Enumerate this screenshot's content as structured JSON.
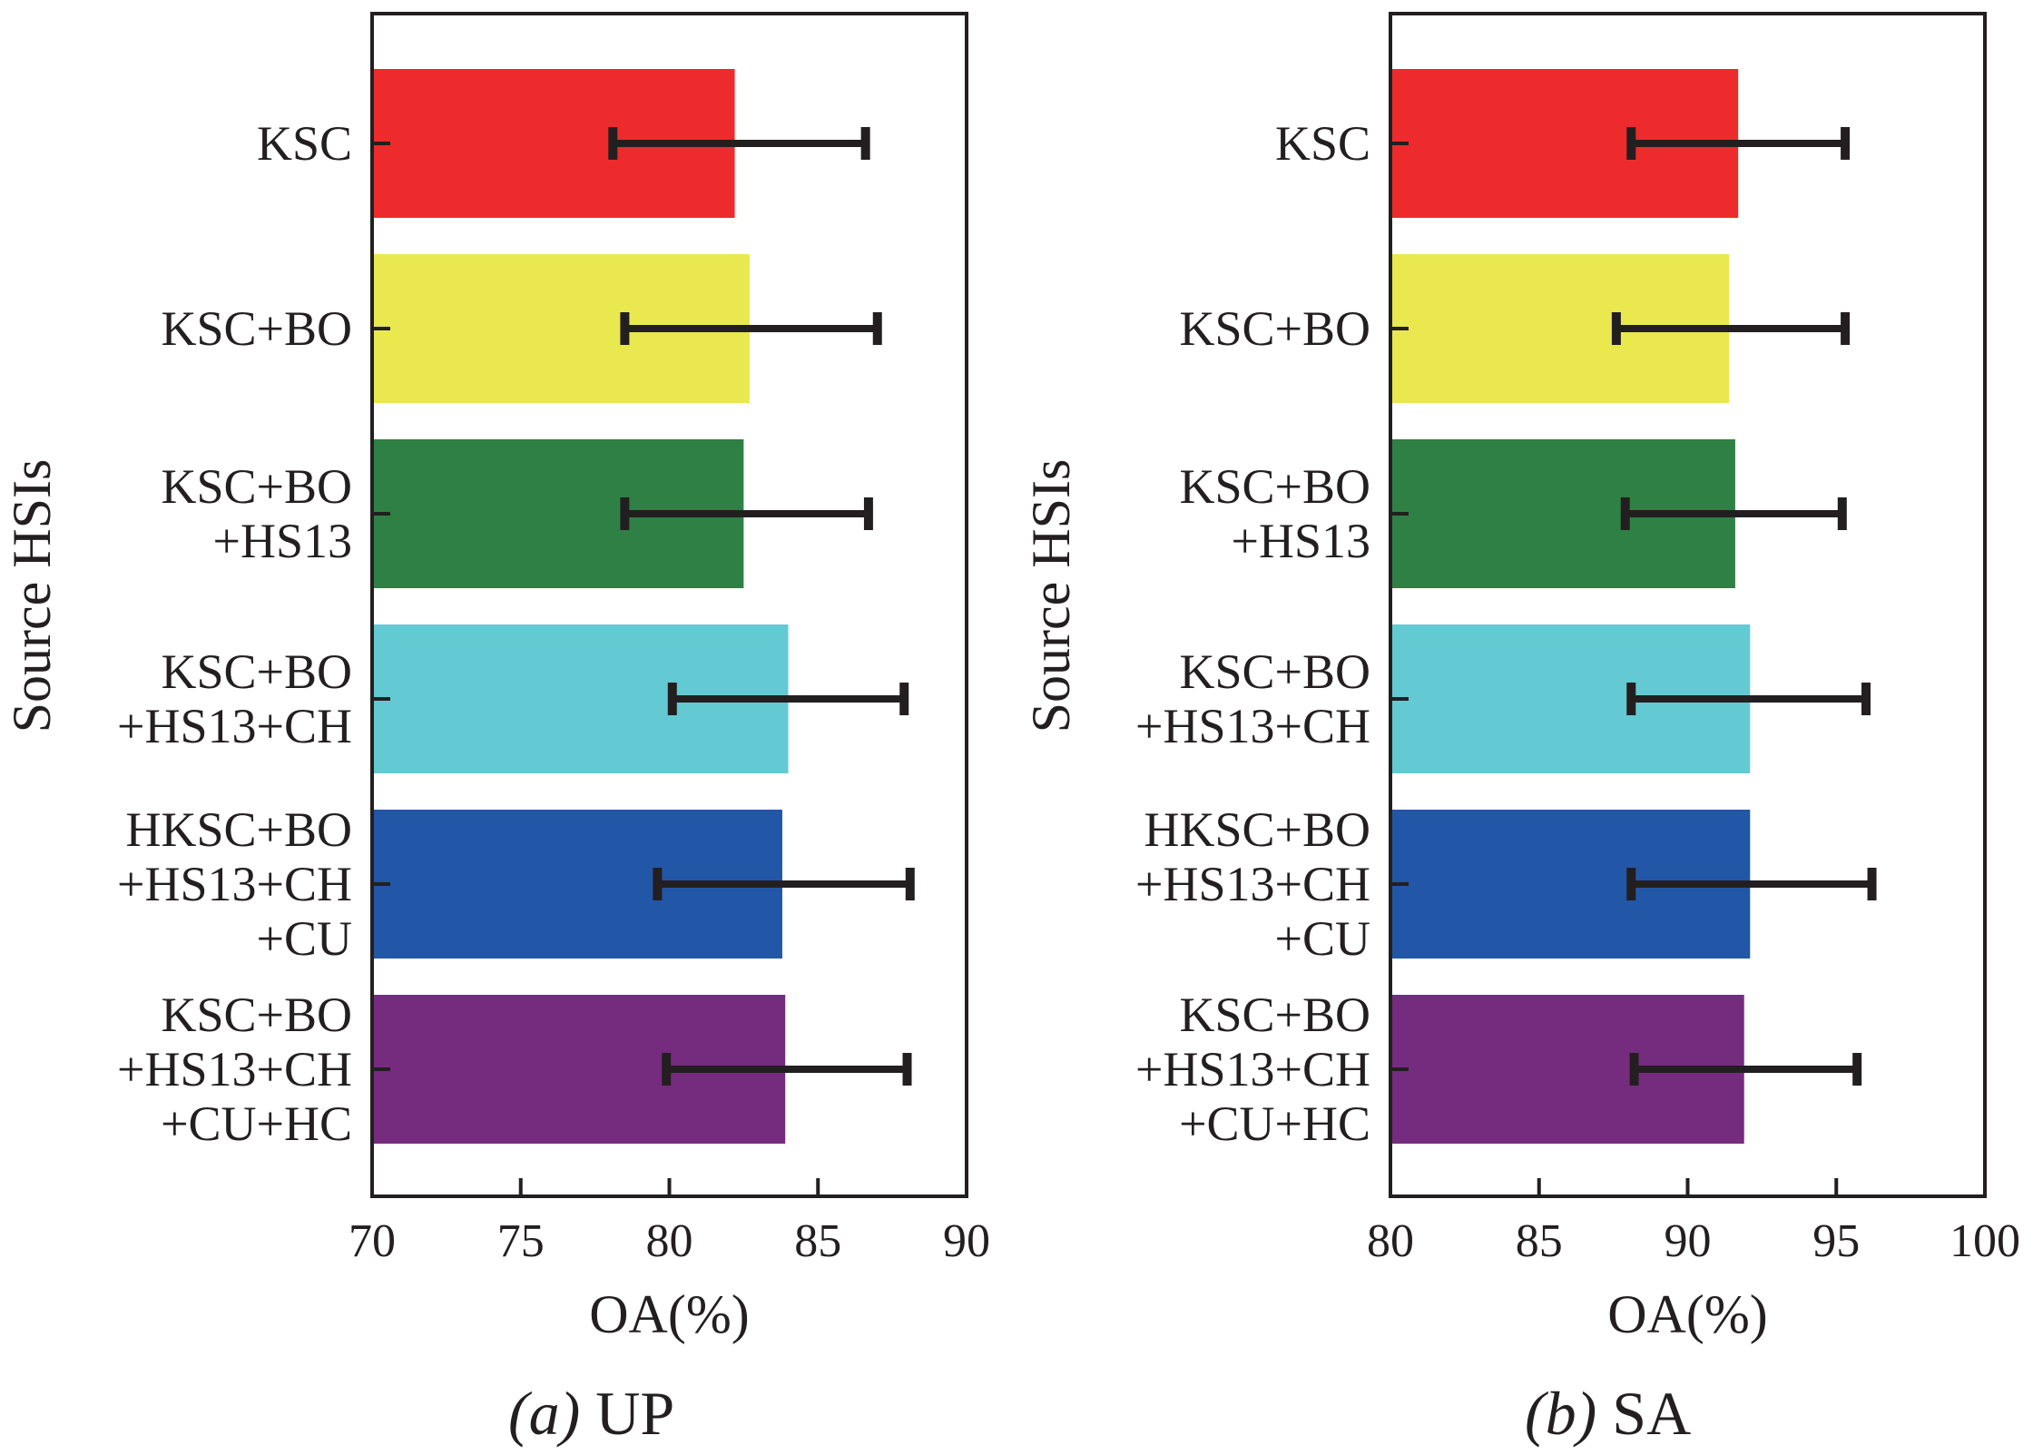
{
  "chart_data": [
    {
      "type": "bar",
      "orientation": "horizontal",
      "caption_prefix": "(a)",
      "caption_name": " UP",
      "xlabel": "OA(%)",
      "ylabel": "Source HSIs",
      "xlim": [
        70,
        90
      ],
      "xticks": [
        70,
        75,
        80,
        85,
        90
      ],
      "categories": [
        [
          "KSC"
        ],
        [
          "KSC+BO"
        ],
        [
          "KSC+BO",
          "+HS13"
        ],
        [
          "KSC+BO",
          "+HS13+CH"
        ],
        [
          "HKSC+BO",
          "+HS13+CH",
          "+CU"
        ],
        [
          "KSC+BO",
          "+HS13+CH",
          "+CU+HC"
        ]
      ],
      "values": [
        82.2,
        82.7,
        82.5,
        84.0,
        83.8,
        83.9
      ],
      "error_low": [
        78.1,
        78.5,
        78.5,
        80.1,
        79.6,
        79.9
      ],
      "error_high": [
        86.6,
        87.0,
        86.7,
        87.9,
        88.1,
        88.0
      ],
      "colors": [
        "#ee2b2c",
        "#e9e84f",
        "#2f8045",
        "#63c9d3",
        "#2256a6",
        "#762c7e"
      ]
    },
    {
      "type": "bar",
      "orientation": "horizontal",
      "caption_prefix": "(b)",
      "caption_name": " SA",
      "xlabel": "OA(%)",
      "ylabel": "Source HSIs",
      "xlim": [
        80,
        100
      ],
      "xticks": [
        80,
        85,
        90,
        95,
        100
      ],
      "categories": [
        [
          "KSC"
        ],
        [
          "KSC+BO"
        ],
        [
          "KSC+BO",
          "+HS13"
        ],
        [
          "KSC+BO",
          "+HS13+CH"
        ],
        [
          "HKSC+BO",
          "+HS13+CH",
          "+CU"
        ],
        [
          "KSC+BO",
          "+HS13+CH",
          "+CU+HC"
        ]
      ],
      "values": [
        91.7,
        91.4,
        91.6,
        92.1,
        92.1,
        91.9
      ],
      "error_low": [
        88.1,
        87.6,
        87.9,
        88.1,
        88.1,
        88.2
      ],
      "error_high": [
        95.3,
        95.3,
        95.2,
        96.0,
        96.2,
        95.7
      ],
      "colors": [
        "#ee2b2c",
        "#e9e84f",
        "#2f8045",
        "#63c9d3",
        "#2256a6",
        "#762c7e"
      ]
    }
  ]
}
